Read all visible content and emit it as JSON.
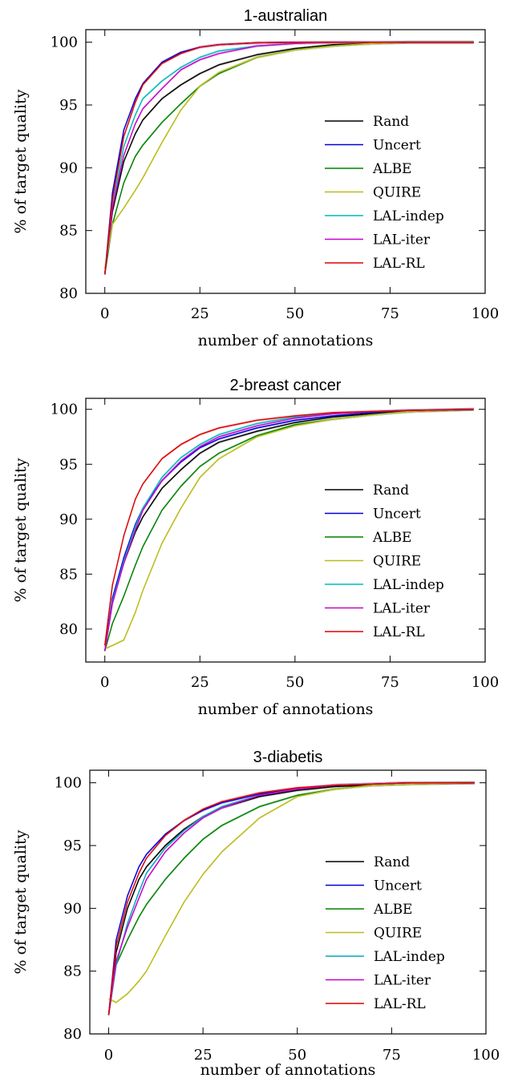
{
  "chart_data": [
    {
      "type": "line",
      "title": "1-australian",
      "xlabel": "number of annotations",
      "ylabel": "% of target quality",
      "xlim": [
        -5,
        100
      ],
      "ylim": [
        80,
        101
      ],
      "xticks": [
        "0",
        "25",
        "50",
        "75",
        "100"
      ],
      "yticks": [
        "80",
        "85",
        "90",
        "95",
        "100"
      ],
      "legend_position": "lower-right",
      "series": [
        {
          "name": "Rand",
          "color": "#000000",
          "x": [
            0,
            2,
            5,
            8,
            10,
            15,
            20,
            25,
            30,
            40,
            50,
            60,
            70,
            80,
            97
          ],
          "values": [
            81.5,
            86.5,
            90.5,
            92.7,
            93.8,
            95.5,
            96.6,
            97.5,
            98.2,
            99.0,
            99.5,
            99.8,
            99.9,
            100.0,
            100.0
          ]
        },
        {
          "name": "Uncert",
          "color": "#0000dd",
          "x": [
            0,
            2,
            5,
            8,
            10,
            15,
            20,
            25,
            30,
            40,
            50,
            60,
            70,
            80,
            97
          ],
          "values": [
            81.5,
            88.0,
            93.0,
            95.5,
            96.7,
            98.4,
            99.2,
            99.6,
            99.8,
            99.95,
            100.0,
            100.0,
            100.0,
            100.0,
            100.0
          ]
        },
        {
          "name": "ALBE",
          "color": "#008000",
          "x": [
            0,
            2,
            5,
            8,
            10,
            15,
            20,
            25,
            30,
            40,
            50,
            60,
            70,
            80,
            97
          ],
          "values": [
            81.5,
            85.5,
            88.8,
            90.9,
            91.8,
            93.6,
            95.1,
            96.5,
            97.5,
            98.8,
            99.4,
            99.7,
            99.9,
            100.0,
            100.0
          ]
        },
        {
          "name": "QUIRE",
          "color": "#bbbb1a",
          "x": [
            0,
            2,
            5,
            8,
            10,
            15,
            20,
            25,
            30,
            40,
            50,
            60,
            70,
            80,
            97
          ],
          "values": [
            82.0,
            85.5,
            86.8,
            88.2,
            89.2,
            92.0,
            94.6,
            96.5,
            97.6,
            98.8,
            99.4,
            99.7,
            99.9,
            100.0,
            100.0
          ]
        },
        {
          "name": "LAL-indep",
          "color": "#00bbbb",
          "x": [
            0,
            2,
            5,
            8,
            10,
            15,
            20,
            25,
            30,
            40,
            50,
            60,
            70,
            80,
            97
          ],
          "values": [
            81.5,
            87.0,
            91.7,
            94.2,
            95.5,
            96.9,
            98.0,
            98.8,
            99.3,
            99.7,
            99.9,
            100.0,
            100.0,
            100.0,
            100.0
          ]
        },
        {
          "name": "LAL-iter",
          "color": "#cc00cc",
          "x": [
            0,
            2,
            5,
            8,
            10,
            15,
            20,
            25,
            30,
            40,
            50,
            60,
            70,
            80,
            97
          ],
          "values": [
            81.5,
            86.8,
            91.0,
            93.5,
            94.7,
            96.3,
            97.8,
            98.6,
            99.1,
            99.7,
            99.9,
            100.0,
            100.0,
            100.0,
            100.0
          ]
        },
        {
          "name": "LAL-RL",
          "color": "#dd0000",
          "x": [
            0,
            2,
            5,
            8,
            10,
            15,
            20,
            25,
            30,
            40,
            50,
            60,
            70,
            80,
            97
          ],
          "values": [
            81.5,
            87.5,
            92.5,
            95.2,
            96.6,
            98.3,
            99.1,
            99.6,
            99.8,
            99.95,
            100.0,
            100.0,
            100.0,
            100.0,
            100.0
          ]
        }
      ]
    },
    {
      "type": "line",
      "title": "2-breast cancer",
      "xlabel": "number of annotations",
      "ylabel": "% of target quality",
      "xlim": [
        -5,
        100
      ],
      "ylim": [
        77,
        101
      ],
      "xticks": [
        "0",
        "25",
        "50",
        "75",
        "100"
      ],
      "yticks": [
        "80",
        "85",
        "90",
        "95",
        "100"
      ],
      "legend_position": "lower-right",
      "series": [
        {
          "name": "Rand",
          "color": "#000000",
          "x": [
            0,
            2,
            5,
            8,
            10,
            15,
            20,
            25,
            30,
            40,
            50,
            60,
            70,
            80,
            97
          ],
          "values": [
            78.0,
            82.5,
            86.0,
            88.8,
            90.2,
            92.8,
            94.5,
            96.0,
            97.0,
            98.0,
            98.8,
            99.3,
            99.6,
            99.8,
            100.0
          ]
        },
        {
          "name": "Uncert",
          "color": "#0000dd",
          "x": [
            0,
            2,
            5,
            8,
            10,
            15,
            20,
            25,
            30,
            40,
            50,
            60,
            70,
            80,
            97
          ],
          "values": [
            78.0,
            82.8,
            86.5,
            89.5,
            91.0,
            93.5,
            95.2,
            96.5,
            97.3,
            98.3,
            99.0,
            99.4,
            99.7,
            99.9,
            100.0
          ]
        },
        {
          "name": "ALBE",
          "color": "#008000",
          "x": [
            0,
            2,
            5,
            8,
            10,
            15,
            20,
            25,
            30,
            40,
            50,
            60,
            70,
            80,
            97
          ],
          "values": [
            78.0,
            80.5,
            83.0,
            85.8,
            87.5,
            90.8,
            93.0,
            94.8,
            96.0,
            97.6,
            98.6,
            99.1,
            99.5,
            99.8,
            100.0
          ]
        },
        {
          "name": "QUIRE",
          "color": "#bbbb1a",
          "x": [
            0,
            2,
            5,
            8,
            10,
            15,
            20,
            25,
            30,
            40,
            50,
            60,
            70,
            80,
            97
          ],
          "values": [
            78.2,
            78.5,
            79.0,
            81.5,
            83.5,
            87.8,
            91.0,
            93.8,
            95.5,
            97.5,
            98.5,
            99.1,
            99.5,
            99.8,
            100.0
          ]
        },
        {
          "name": "LAL-indep",
          "color": "#00bbbb",
          "x": [
            0,
            2,
            5,
            8,
            10,
            15,
            20,
            25,
            30,
            40,
            50,
            60,
            70,
            80,
            97
          ],
          "values": [
            78.0,
            82.5,
            86.2,
            89.3,
            91.0,
            93.8,
            95.6,
            96.8,
            97.7,
            98.7,
            99.3,
            99.6,
            99.8,
            99.9,
            100.0
          ]
        },
        {
          "name": "LAL-iter",
          "color": "#cc00cc",
          "x": [
            0,
            2,
            5,
            8,
            10,
            15,
            20,
            25,
            30,
            40,
            50,
            60,
            70,
            80,
            97
          ],
          "values": [
            78.0,
            82.3,
            86.0,
            89.0,
            90.8,
            93.5,
            95.3,
            96.6,
            97.5,
            98.5,
            99.2,
            99.6,
            99.8,
            99.9,
            100.0
          ]
        },
        {
          "name": "LAL-RL",
          "color": "#dd0000",
          "x": [
            0,
            2,
            5,
            8,
            10,
            15,
            20,
            25,
            30,
            40,
            50,
            60,
            70,
            80,
            97
          ],
          "values": [
            78.5,
            84.0,
            88.5,
            91.8,
            93.2,
            95.5,
            96.8,
            97.7,
            98.3,
            99.0,
            99.4,
            99.7,
            99.8,
            99.9,
            100.0
          ]
        }
      ]
    },
    {
      "type": "line",
      "title": "3-diabetis",
      "xlabel": "number of annotations",
      "ylabel": "% of target quality",
      "xlim": [
        -5,
        100
      ],
      "ylim": [
        80,
        101
      ],
      "xticks": [
        "0",
        "25",
        "50",
        "75",
        "100"
      ],
      "yticks": [
        "80",
        "85",
        "90",
        "95",
        "100"
      ],
      "legend_position": "lower-right",
      "series": [
        {
          "name": "Rand",
          "color": "#000000",
          "x": [
            0,
            2,
            5,
            8,
            10,
            15,
            20,
            25,
            30,
            40,
            50,
            60,
            70,
            80,
            97
          ],
          "values": [
            81.5,
            86.5,
            90.0,
            92.3,
            93.3,
            95.0,
            96.3,
            97.3,
            98.0,
            98.9,
            99.4,
            99.7,
            99.8,
            99.9,
            100.0
          ]
        },
        {
          "name": "Uncert",
          "color": "#0000dd",
          "x": [
            0,
            2,
            5,
            8,
            10,
            15,
            20,
            25,
            30,
            40,
            50,
            60,
            70,
            80,
            97
          ],
          "values": [
            81.5,
            87.5,
            91.0,
            93.3,
            94.3,
            95.9,
            97.0,
            97.8,
            98.4,
            99.1,
            99.5,
            99.8,
            99.9,
            100.0,
            100.0
          ]
        },
        {
          "name": "ALBE",
          "color": "#008000",
          "x": [
            0,
            2,
            5,
            8,
            10,
            15,
            20,
            25,
            30,
            40,
            50,
            60,
            70,
            80,
            97
          ],
          "values": [
            81.5,
            85.5,
            87.5,
            89.3,
            90.3,
            92.3,
            94.0,
            95.5,
            96.6,
            98.1,
            99.0,
            99.5,
            99.8,
            99.9,
            100.0
          ]
        },
        {
          "name": "QUIRE",
          "color": "#bbbb1a",
          "x": [
            0,
            2,
            5,
            8,
            10,
            15,
            20,
            25,
            30,
            40,
            50,
            60,
            70,
            80,
            97
          ],
          "values": [
            82.8,
            82.5,
            83.2,
            84.2,
            85.0,
            87.8,
            90.5,
            92.7,
            94.5,
            97.2,
            98.9,
            99.5,
            99.8,
            99.9,
            100.0
          ]
        },
        {
          "name": "LAL-indep",
          "color": "#00aabb",
          "x": [
            0,
            2,
            5,
            8,
            10,
            15,
            20,
            25,
            30,
            40,
            50,
            60,
            70,
            80,
            97
          ],
          "values": [
            81.5,
            85.5,
            88.8,
            91.3,
            92.8,
            94.8,
            96.2,
            97.3,
            98.1,
            99.0,
            99.5,
            99.8,
            99.9,
            100.0,
            100.0
          ]
        },
        {
          "name": "LAL-iter",
          "color": "#cc00cc",
          "x": [
            0,
            2,
            5,
            8,
            10,
            15,
            20,
            25,
            30,
            40,
            50,
            60,
            70,
            80,
            97
          ],
          "values": [
            81.5,
            85.8,
            88.5,
            90.8,
            92.3,
            94.5,
            96.0,
            97.2,
            98.0,
            99.0,
            99.5,
            99.8,
            99.9,
            100.0,
            100.0
          ]
        },
        {
          "name": "LAL-RL",
          "color": "#dd0000",
          "x": [
            0,
            2,
            5,
            8,
            10,
            15,
            20,
            25,
            30,
            40,
            50,
            60,
            70,
            80,
            97
          ],
          "values": [
            81.5,
            87.0,
            90.5,
            92.8,
            94.0,
            95.8,
            97.0,
            97.9,
            98.5,
            99.2,
            99.6,
            99.8,
            99.9,
            100.0,
            100.0
          ]
        }
      ]
    }
  ]
}
